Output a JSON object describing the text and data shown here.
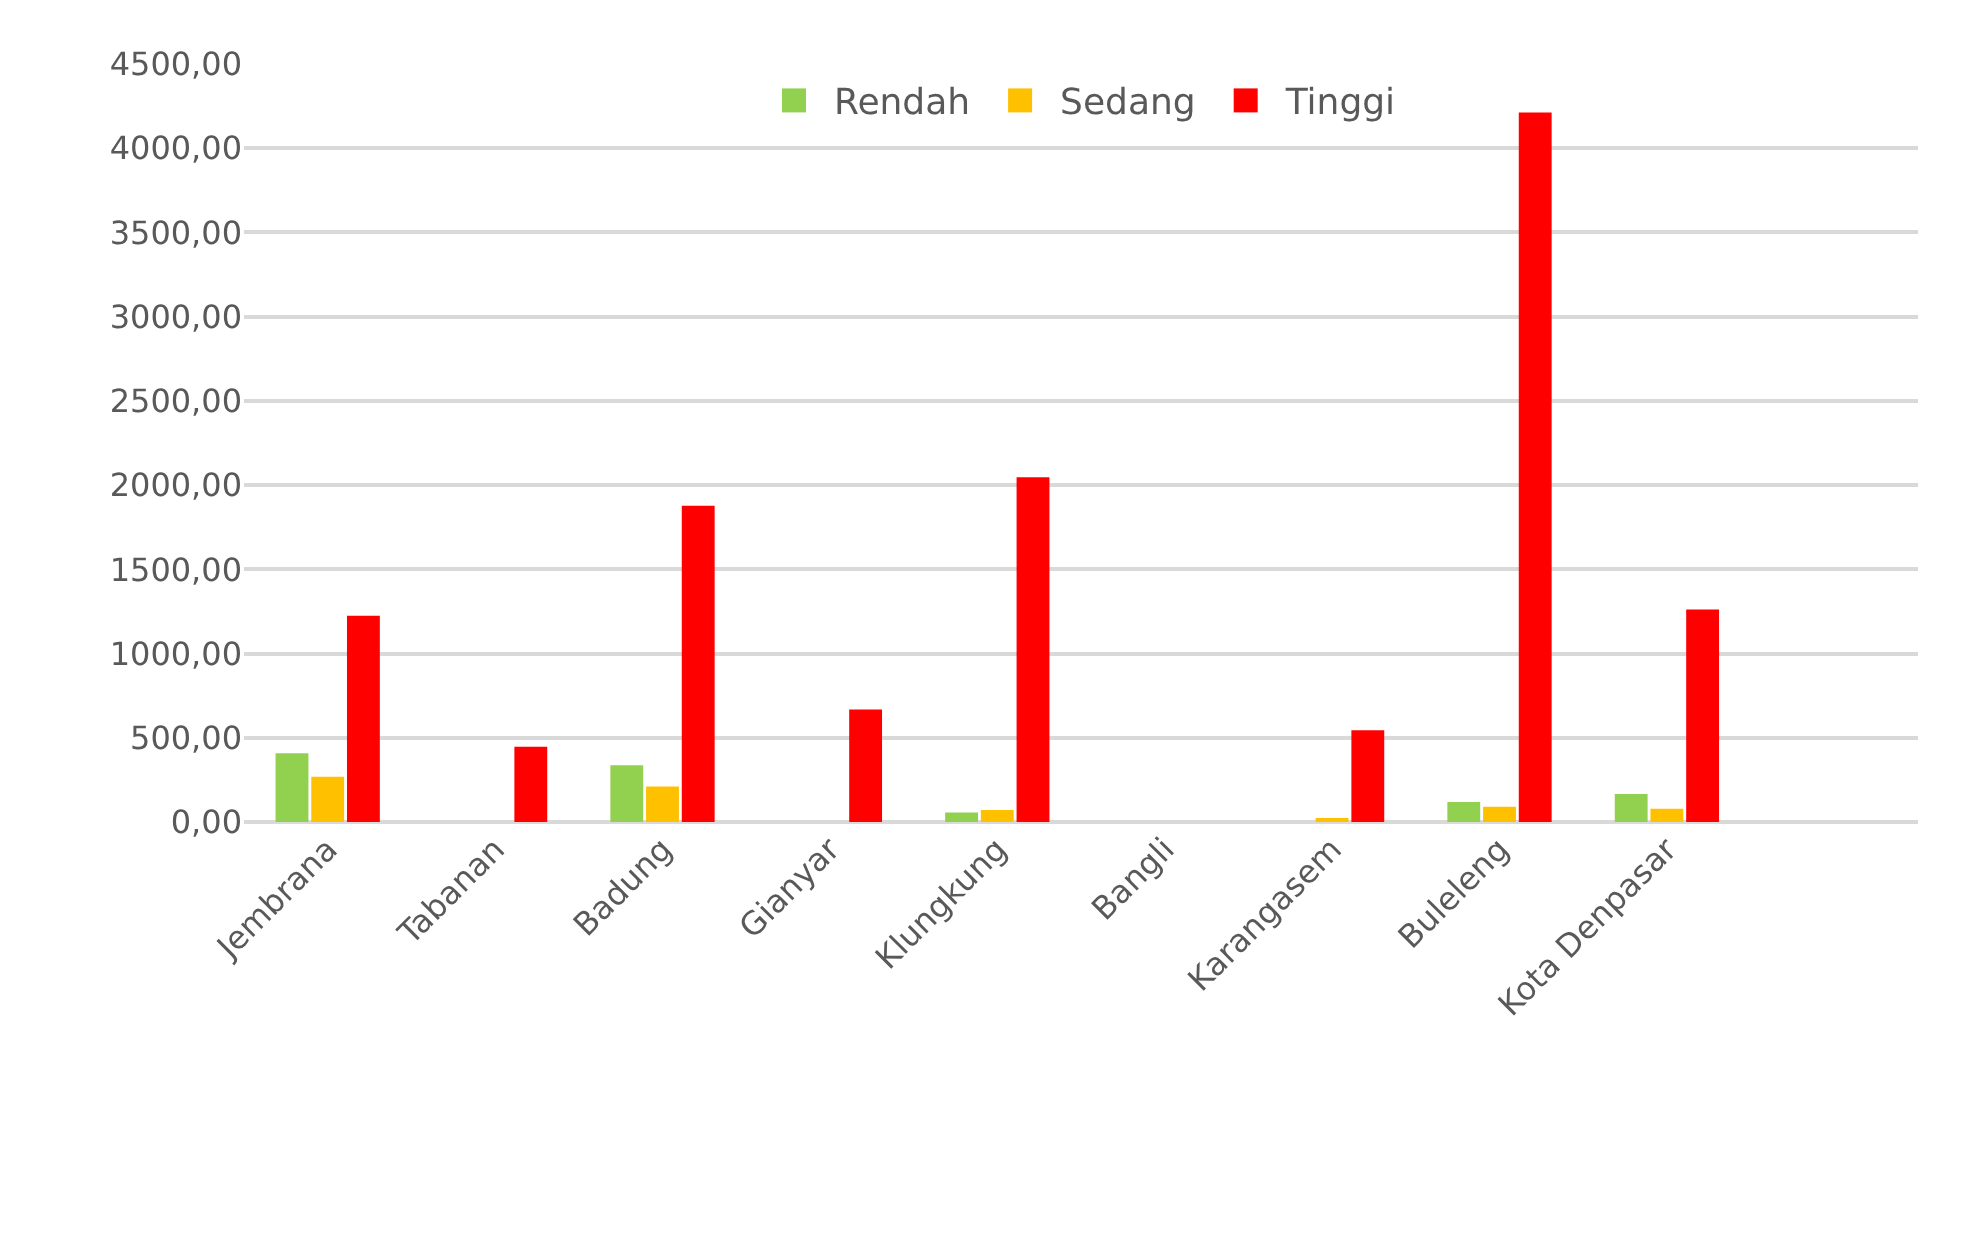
{
  "chart_data": {
    "type": "bar",
    "categories": [
      "Jembrana",
      "Tabanan",
      "Badung",
      "Gianyar",
      "Klungkung",
      "Bangli",
      "Karangasem",
      "Buleleng",
      "Kota Denpasar",
      null
    ],
    "series": [
      {
        "name": "Rendah",
        "color": "#92d050",
        "values": [
          408,
          null,
          337,
          null,
          56,
          null,
          null,
          119,
          166,
          null
        ]
      },
      {
        "name": "Sedang",
        "color": "#ffc000",
        "values": [
          269,
          null,
          210,
          null,
          71,
          null,
          20,
          91,
          79,
          null
        ]
      },
      {
        "name": "Tinggi",
        "color": "#ff0000",
        "values": [
          1225,
          447,
          1877,
          668,
          2047,
          null,
          545,
          4212,
          1261,
          null
        ]
      }
    ],
    "ylim": [
      0,
      4500
    ],
    "yticks": [
      {
        "value": 0,
        "label": "0,00"
      },
      {
        "value": 500,
        "label": "500,00"
      },
      {
        "value": 1000,
        "label": "1000,00"
      },
      {
        "value": 1500,
        "label": "1500,00"
      },
      {
        "value": 2000,
        "label": "2000,00"
      },
      {
        "value": 2500,
        "label": "2500,00"
      },
      {
        "value": 3000,
        "label": "3000,00"
      },
      {
        "value": 3500,
        "label": "3500,00"
      },
      {
        "value": 4000,
        "label": "4000,00"
      },
      {
        "value": 4500,
        "label": "4500,00"
      }
    ],
    "grid": "y",
    "legend": "top"
  }
}
